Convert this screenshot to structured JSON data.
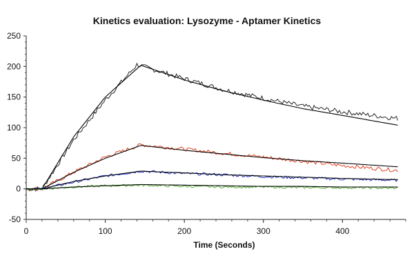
{
  "chart_data": {
    "type": "line",
    "title": "Kinetics evaluation: Lysozyme - Aptamer Kinetics",
    "xlabel": "Time (Seconds)",
    "ylabel": "",
    "xlim": [
      0,
      480
    ],
    "ylim": [
      -50,
      250
    ],
    "x_ticks": [
      0,
      100,
      200,
      300,
      400
    ],
    "y_ticks": [
      -50,
      0,
      50,
      100,
      150,
      200,
      250
    ],
    "grid": false,
    "legend": "none",
    "injection_start": 20,
    "injection_end": 145,
    "series": [
      {
        "color": "#222222",
        "fit": [
          [
            0,
            0
          ],
          [
            20,
            0
          ],
          [
            60,
            85
          ],
          [
            100,
            150
          ],
          [
            145,
            202
          ],
          [
            200,
            178
          ],
          [
            250,
            160
          ],
          [
            300,
            145
          ],
          [
            350,
            131
          ],
          [
            400,
            120
          ],
          [
            470,
            104
          ]
        ],
        "data": [
          [
            0,
            0
          ],
          [
            20,
            0
          ],
          [
            60,
            80
          ],
          [
            100,
            145
          ],
          [
            140,
            203
          ],
          [
            200,
            180
          ],
          [
            250,
            162
          ],
          [
            300,
            148
          ],
          [
            350,
            135
          ],
          [
            400,
            126
          ],
          [
            470,
            115
          ]
        ]
      },
      {
        "color": "#e04020",
        "fit": [
          [
            0,
            0
          ],
          [
            20,
            0
          ],
          [
            60,
            27
          ],
          [
            100,
            50
          ],
          [
            145,
            71
          ],
          [
            200,
            63
          ],
          [
            250,
            57
          ],
          [
            300,
            51
          ],
          [
            350,
            46
          ],
          [
            400,
            42
          ],
          [
            470,
            36
          ]
        ],
        "data": [
          [
            0,
            0
          ],
          [
            20,
            0
          ],
          [
            60,
            27
          ],
          [
            100,
            52
          ],
          [
            145,
            72
          ],
          [
            200,
            65
          ],
          [
            250,
            58
          ],
          [
            300,
            52
          ],
          [
            350,
            45
          ],
          [
            400,
            38
          ],
          [
            470,
            30
          ]
        ]
      },
      {
        "color": "#2030c0",
        "fit": [
          [
            0,
            0
          ],
          [
            20,
            0
          ],
          [
            60,
            12
          ],
          [
            100,
            21
          ],
          [
            145,
            29
          ],
          [
            200,
            26
          ],
          [
            250,
            23
          ],
          [
            300,
            21
          ],
          [
            350,
            19
          ],
          [
            400,
            17
          ],
          [
            470,
            15
          ]
        ],
        "data": [
          [
            0,
            0
          ],
          [
            20,
            0
          ],
          [
            60,
            11
          ],
          [
            100,
            21
          ],
          [
            145,
            29
          ],
          [
            200,
            25
          ],
          [
            250,
            23
          ],
          [
            300,
            20
          ],
          [
            350,
            18
          ],
          [
            400,
            16
          ],
          [
            470,
            14
          ]
        ]
      },
      {
        "color": "#50b030",
        "fit": [
          [
            0,
            0
          ],
          [
            20,
            0
          ],
          [
            60,
            3
          ],
          [
            100,
            5
          ],
          [
            145,
            7
          ],
          [
            200,
            6
          ],
          [
            250,
            5
          ],
          [
            300,
            4
          ],
          [
            350,
            4
          ],
          [
            400,
            3
          ],
          [
            470,
            3
          ]
        ],
        "data": [
          [
            0,
            0
          ],
          [
            20,
            0
          ],
          [
            60,
            3
          ],
          [
            100,
            5
          ],
          [
            145,
            6
          ],
          [
            200,
            4
          ],
          [
            250,
            3
          ],
          [
            300,
            3
          ],
          [
            350,
            2
          ],
          [
            400,
            2
          ],
          [
            470,
            1
          ]
        ]
      }
    ]
  }
}
